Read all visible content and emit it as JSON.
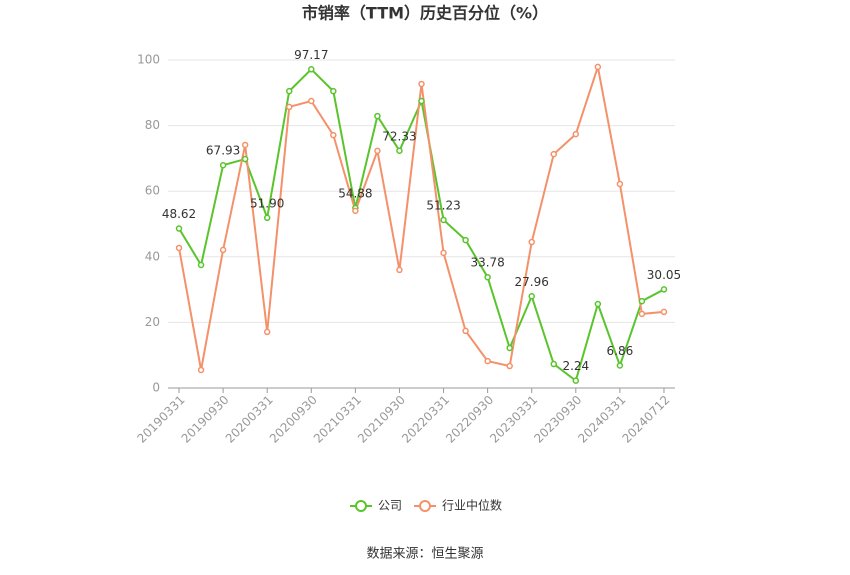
{
  "chart_data": {
    "type": "line",
    "title": "市销率（TTM）历史百分位（%）",
    "source": "数据来源：恒生聚源",
    "categories": [
      "20190331",
      null,
      "20190930",
      null,
      "20200331",
      null,
      "20200930",
      null,
      "20210331",
      null,
      "20210930",
      null,
      "20220331",
      null,
      "20220930",
      null,
      "20230331",
      null,
      "20230930",
      null,
      "20240331",
      null,
      "20240712"
    ],
    "series": [
      {
        "name": "公司",
        "color": "#5ac42c",
        "values": [
          48.62,
          37.5,
          67.93,
          69.8,
          51.9,
          90.5,
          97.17,
          90.5,
          54.88,
          82.9,
          72.33,
          87.5,
          51.23,
          45.1,
          33.78,
          12.2,
          27.96,
          7.3,
          2.24,
          25.6,
          6.86,
          26.5,
          30.05
        ],
        "value_labels": [
          "48.62",
          null,
          "67.93",
          null,
          "51.90",
          null,
          "97.17",
          null,
          "54.88",
          null,
          "72.33",
          null,
          "51.23",
          null,
          "33.78",
          null,
          "27.96",
          null,
          "2.24",
          null,
          "6.86",
          null,
          "30.05"
        ]
      },
      {
        "name": "行业中位数",
        "color": "#f4916a",
        "values": [
          42.7,
          5.5,
          42.1,
          74.1,
          17.1,
          85.7,
          87.5,
          77.1,
          54.0,
          72.3,
          36.0,
          92.7,
          41.2,
          17.4,
          8.2,
          6.7,
          44.5,
          71.3,
          77.4,
          97.9,
          62.2,
          22.6,
          23.2
        ]
      }
    ],
    "ylim": [
      0,
      100
    ],
    "yticks": [
      0,
      20,
      40,
      60,
      80,
      100
    ],
    "grid": true,
    "legend": "bottom"
  }
}
